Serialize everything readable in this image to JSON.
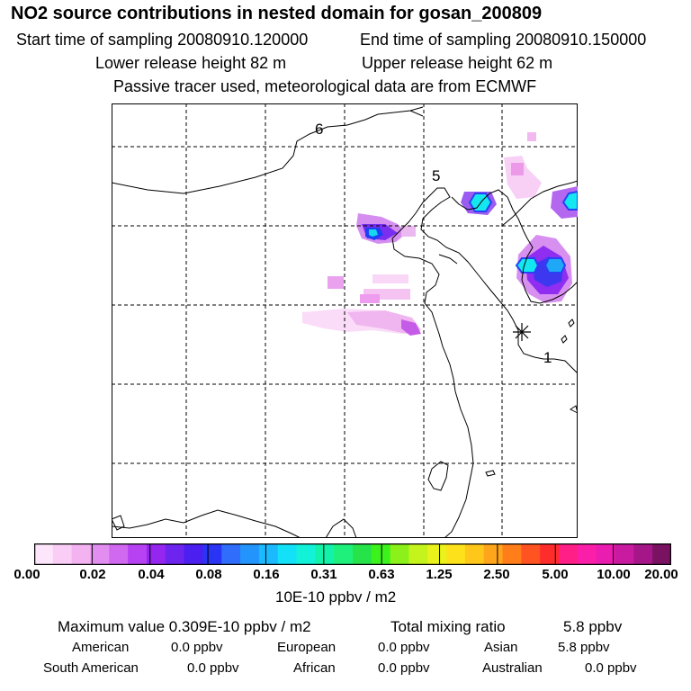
{
  "header": {
    "title": "NO2 source contributions in nested domain for gosan_200809",
    "start": "Start time of sampling 20080910.120000",
    "end": "End time of sampling 20080910.150000",
    "lower": "Lower release height   82 m",
    "upper": "Upper release height   62 m",
    "tracer": "Passive tracer used, meteorological data are from ECMWF"
  },
  "map": {
    "region_labels": [
      "6",
      "5",
      "1"
    ]
  },
  "colorbar": {
    "colors": [
      "#fde6fb",
      "#f9cdf5",
      "#f3b3f0",
      "#e28ef1",
      "#d068f0",
      "#b742f3",
      "#9426f0",
      "#6d24ee",
      "#4a1ff0",
      "#2a34f4",
      "#2f6dfa",
      "#2394fb",
      "#1bb9fd",
      "#13e1f8",
      "#11f2d8",
      "#12f2a8",
      "#1ff07c",
      "#26e34a",
      "#3cf21c",
      "#8cf11a",
      "#c5f41d",
      "#eaf21c",
      "#fde21b",
      "#ffc71a",
      "#ffa51b",
      "#ff7e1a",
      "#ff5321",
      "#ff2c2c",
      "#ff1f86",
      "#fb1ea8",
      "#ea1db0",
      "#c81ba0",
      "#a51789",
      "#7a1262"
    ],
    "ticks": [
      "0.00",
      "0.02",
      "0.04",
      "0.08",
      "0.16",
      "0.31",
      "0.63",
      "1.25",
      "2.50",
      "5.00",
      "10.00",
      "20.00"
    ],
    "unit": "10E-10 ppbv / m2"
  },
  "summary": {
    "maximum": "Maximum value  0.309E-10 ppbv / m2",
    "total_label": "Total mixing ratio",
    "total_value": "5.8 ppbv",
    "american_label": "American",
    "american_value": "0.0 ppbv",
    "european_label": "European",
    "european_value": "0.0 ppbv",
    "asian_label": "Asian",
    "asian_value": "5.8 ppbv",
    "south_american_label": "South American",
    "south_american_value": "0.0 ppbv",
    "african_label": "African",
    "african_value": "0.0 ppbv",
    "australian_label": "Australian",
    "australian_value": "0.0 ppbv"
  }
}
